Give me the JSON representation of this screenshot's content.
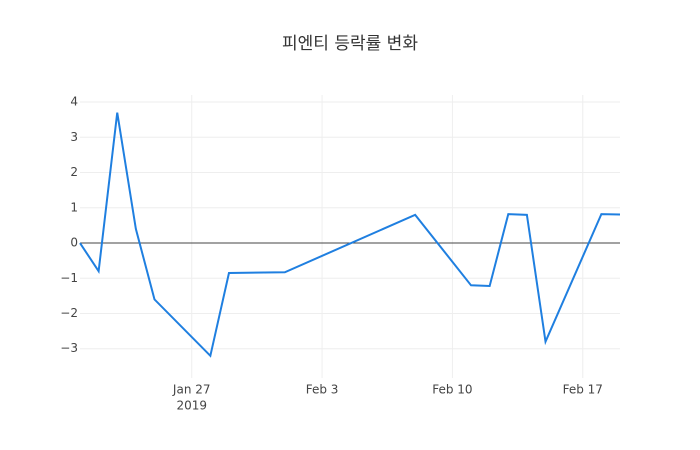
{
  "chart_data": {
    "type": "line",
    "title": "피엔티 등락률 변화",
    "x": [
      "2019-01-21",
      "2019-01-22",
      "2019-01-23",
      "2019-01-24",
      "2019-01-25",
      "2019-01-28",
      "2019-01-29",
      "2019-02-01",
      "2019-02-08",
      "2019-02-11",
      "2019-02-12",
      "2019-02-13",
      "2019-02-14",
      "2019-02-15",
      "2019-02-18",
      "2019-02-19"
    ],
    "series": [
      {
        "name": "등락률",
        "color": "#1f7fe0",
        "values": [
          0,
          -0.8,
          3.7,
          0.4,
          -1.6,
          -3.2,
          -0.85,
          -0.83,
          0.8,
          -1.2,
          -1.22,
          0.82,
          0.8,
          -2.8,
          0.82,
          0.81
        ]
      }
    ],
    "xlim": [
      "2019-01-21",
      "2019-02-19"
    ],
    "xticks": [
      {
        "value": "2019-01-27",
        "label": "Jan 27"
      },
      {
        "value": "2019-02-03",
        "label": "Feb 3"
      },
      {
        "value": "2019-02-10",
        "label": "Feb 10"
      },
      {
        "value": "2019-02-17",
        "label": "Feb 17"
      }
    ],
    "x_year_label": "2019",
    "ylim": [
      -3.83,
      4.2
    ],
    "yticks": [
      {
        "value": -3,
        "label": "−3"
      },
      {
        "value": -2,
        "label": "−2"
      },
      {
        "value": -1,
        "label": "−1"
      },
      0,
      1,
      2,
      3,
      4
    ],
    "grid": true,
    "zero_line": true
  }
}
